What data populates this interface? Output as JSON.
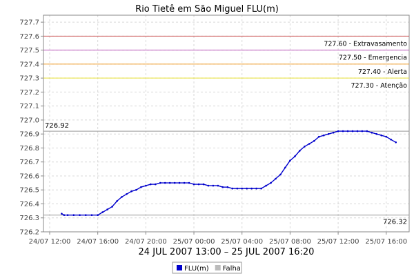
{
  "chart_data": {
    "type": "line",
    "title": "Rio Tietê em São Miguel FLU(m)",
    "subtitle": "24 JUL 2007 13:00 – 25 JUL 2007 16:20",
    "ylim": [
      726.2,
      727.75
    ],
    "y_ticks": [
      "726.2",
      "726.3",
      "726.4",
      "726.5",
      "726.6",
      "726.7",
      "726.8",
      "726.9",
      "727.0",
      "727.1",
      "727.2",
      "727.3",
      "727.4",
      "727.5",
      "727.6",
      "727.7"
    ],
    "x_ticks": [
      {
        "hour": 0,
        "label": "24/07 12:00"
      },
      {
        "hour": 4,
        "label": "24/07 16:00"
      },
      {
        "hour": 8,
        "label": "24/07 20:00"
      },
      {
        "hour": 12,
        "label": "25/07 00:00"
      },
      {
        "hour": 16,
        "label": "25/07 04:00"
      },
      {
        "hour": 20,
        "label": "25/07 08:00"
      },
      {
        "hour": 24,
        "label": "25/07 12:00"
      },
      {
        "hour": 28,
        "label": "25/07 16:00"
      }
    ],
    "thresholds": [
      {
        "value": 727.6,
        "label": "727.60 - Extravasamento",
        "color": "#cc5555"
      },
      {
        "value": 727.5,
        "label": "727.50 - Emergencia",
        "color": "#bb55bb"
      },
      {
        "value": 727.4,
        "label": "727.40 - Alerta",
        "color": "#f0a030"
      },
      {
        "value": 727.3,
        "label": "727.30 - Atenção",
        "color": "#e8e030"
      }
    ],
    "max_line": {
      "value": 726.92,
      "label": "726.92",
      "color": "#999999"
    },
    "min_line": {
      "value": 726.32,
      "label": "726.32",
      "color": "#999999"
    },
    "series": [
      {
        "name": "FLU(m)",
        "color": "#0000cc",
        "x": [
          1.0,
          1.2,
          1.5,
          2.0,
          2.5,
          3.0,
          3.5,
          4.0,
          4.4,
          4.8,
          5.2,
          5.6,
          6.0,
          6.4,
          6.8,
          7.2,
          7.6,
          8.0,
          8.4,
          8.8,
          9.2,
          9.6,
          10.0,
          10.4,
          10.8,
          11.2,
          11.6,
          12.0,
          12.4,
          12.8,
          13.2,
          13.6,
          14.0,
          14.4,
          14.8,
          15.2,
          15.6,
          16.0,
          16.4,
          16.8,
          17.2,
          17.6,
          18.0,
          18.4,
          18.8,
          19.2,
          19.6,
          20.0,
          20.4,
          20.8,
          21.2,
          21.6,
          22.0,
          22.4,
          22.8,
          23.2,
          23.6,
          24.0,
          24.4,
          24.8,
          25.2,
          25.6,
          26.0,
          26.4,
          26.8,
          27.2,
          27.6,
          28.0,
          28.4,
          28.8
        ],
        "y": [
          726.33,
          726.32,
          726.32,
          726.32,
          726.32,
          726.32,
          726.32,
          726.32,
          726.34,
          726.36,
          726.38,
          726.42,
          726.45,
          726.47,
          726.49,
          726.5,
          726.52,
          726.53,
          726.54,
          726.54,
          726.55,
          726.55,
          726.55,
          726.55,
          726.55,
          726.55,
          726.55,
          726.54,
          726.54,
          726.54,
          726.53,
          726.53,
          726.53,
          726.52,
          726.52,
          726.51,
          726.51,
          726.51,
          726.51,
          726.51,
          726.51,
          726.51,
          726.53,
          726.55,
          726.58,
          726.61,
          726.66,
          726.71,
          726.74,
          726.78,
          726.81,
          726.83,
          726.85,
          726.88,
          726.89,
          726.9,
          726.91,
          726.92,
          726.92,
          726.92,
          726.92,
          726.92,
          726.92,
          726.92,
          726.91,
          726.9,
          726.89,
          726.88,
          726.86,
          726.84
        ]
      },
      {
        "name": "Falha",
        "color": "#bbbbbb",
        "x": [],
        "y": []
      }
    ],
    "legend_position": "bottom-center",
    "grid": true
  }
}
